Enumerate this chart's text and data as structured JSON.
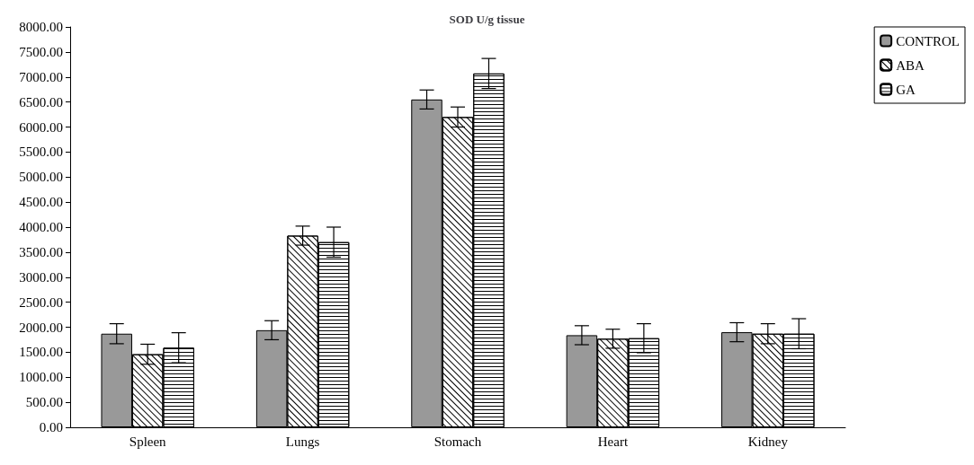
{
  "chart_data": {
    "type": "bar",
    "title": "SOD U/g tissue",
    "categories": [
      "Spleen",
      "Lungs",
      "Stomach",
      "Heart",
      "Kidney"
    ],
    "series": [
      {
        "name": "CONTROL",
        "color": "#999999",
        "values": [
          1870,
          1940,
          6550,
          1840,
          1900
        ],
        "errors": [
          200,
          190,
          190,
          190,
          190
        ]
      },
      {
        "name": "ABA",
        "color": "#ffffff",
        "values": [
          1460,
          3830,
          6200,
          1770,
          1870
        ],
        "errors": [
          200,
          190,
          200,
          190,
          200
        ]
      },
      {
        "name": "GA",
        "color": "#ffffff",
        "values": [
          1590,
          3700,
          7070,
          1780,
          1870
        ],
        "errors": [
          300,
          300,
          300,
          290,
          300
        ]
      }
    ],
    "ylim": [
      0,
      8000
    ],
    "yticks": [
      {
        "value": 0,
        "label": "0.00"
      },
      {
        "value": 500,
        "label": "500.00"
      },
      {
        "value": 1000,
        "label": "1000.00"
      },
      {
        "value": 1500,
        "label": "1500.00"
      },
      {
        "value": 2000,
        "label": "2000.00"
      },
      {
        "value": 2500,
        "label": "2500.00"
      },
      {
        "value": 3000,
        "label": "3000.00"
      },
      {
        "value": 3500,
        "label": "3500.00"
      },
      {
        "value": 4000,
        "label": "4000.00"
      },
      {
        "value": 4500,
        "label": "4500.00"
      },
      {
        "value": 5000,
        "label": "5000.00"
      },
      {
        "value": 5500,
        "label": "5500.00"
      },
      {
        "value": 6000,
        "label": "6000.00"
      },
      {
        "value": 6500,
        "label": "6500.00"
      },
      {
        "value": 7000,
        "label": "7000.00"
      },
      {
        "value": 7500,
        "label": "7500.00"
      },
      {
        "value": 8000,
        "label": "8000.00"
      }
    ],
    "grid": false,
    "legend": "top right"
  }
}
